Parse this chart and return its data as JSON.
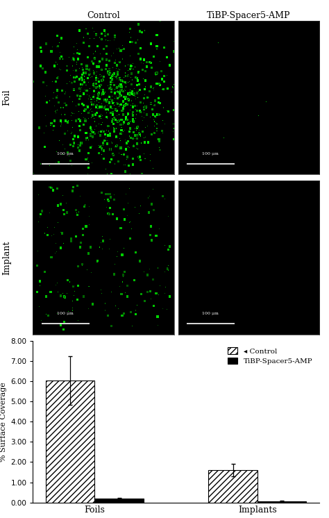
{
  "title_col1": "Control",
  "title_col2": "TiBP-Spacer5-AMP",
  "row_labels": [
    "Foil",
    "Implant"
  ],
  "scale_bar_text": "100 μm",
  "bar_categories": [
    "Foils",
    "Implants"
  ],
  "control_values": [
    6.05,
    1.6
  ],
  "control_errors": [
    1.2,
    0.3
  ],
  "tibp_values": [
    0.2,
    0.06
  ],
  "tibp_errors": [
    0.03,
    0.02
  ],
  "ylabel": "% Surface Coverage",
  "ylim": [
    0,
    8.0
  ],
  "yticks": [
    0.0,
    1.0,
    2.0,
    3.0,
    4.0,
    5.0,
    6.0,
    7.0,
    8.0
  ],
  "legend_control": "◂ Control",
  "legend_tibp": "TiBP-Spacer5-AMP",
  "hatch_pattern": "////",
  "control_color": "white",
  "tibp_color": "black",
  "background_color": "white",
  "num_dots_foil_control": 900,
  "num_dots_implant_control": 220,
  "num_dots_foil_tibp": 4,
  "num_dots_implant_tibp": 0,
  "dot_color": "#00ee00",
  "img_size": 200
}
